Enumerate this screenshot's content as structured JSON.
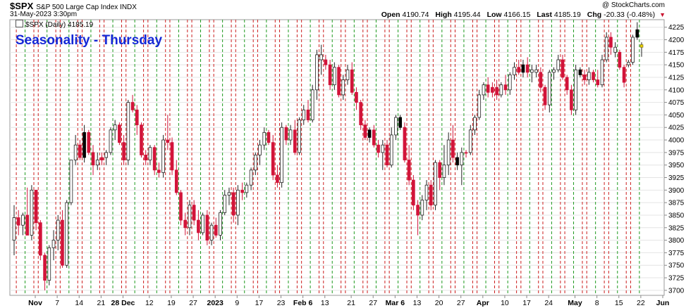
{
  "header": {
    "symbol": "$SPX",
    "name": "S&P 500 Large Cap Index",
    "exchange": "INDX",
    "datetime": "31-May-2023 3:30pm",
    "watermark": "@ StockCharts.com",
    "open_label": "Open",
    "open": "4190.74",
    "high_label": "High",
    "high": "4195.44",
    "low_label": "Low",
    "low": "4166.15",
    "last_label": "Last",
    "last": "4185.19",
    "chg_label": "Chg",
    "chg": "-20.33 (-0.48%)",
    "chg_icon": "down-triangle-icon"
  },
  "legend_text": "$SPX (Daily) 4185.19",
  "annotation": "Seasonality - Thursday",
  "colors": {
    "up_candle_body": "#ffffff",
    "down_candle_body": "#d2143a",
    "black_candle": "#000000",
    "current_bar": "#f2d600",
    "red_line": "#cc1f1f",
    "green_line": "#1f9a1f",
    "title_blue": "#1428d6"
  },
  "chart_data": {
    "type": "candlestick",
    "title": "$SPX (Daily)",
    "ylim": [
      3690,
      4240
    ],
    "yticks": [
      3700,
      3725,
      3750,
      3775,
      3800,
      3825,
      3850,
      3875,
      3900,
      3925,
      3950,
      3975,
      4000,
      4025,
      4050,
      4075,
      4100,
      4125,
      4150,
      4175,
      4200,
      4225
    ],
    "grid": true,
    "y_axis_position": "right",
    "x_labels": [
      "Nov",
      "7",
      "14",
      "21",
      "28 Dec",
      "12",
      "19",
      "27",
      "2023",
      "9",
      "17",
      "23",
      "Feb 6",
      "13",
      "21",
      "27",
      "Mar 6",
      "13",
      "20",
      "27",
      "Apr",
      "10",
      "17",
      "24",
      "May",
      "8",
      "15",
      "22",
      "Jun"
    ],
    "x_label_bold": [
      "Nov",
      "Dec",
      "2023",
      "Feb",
      "Mar",
      "Apr",
      "May",
      "Jun"
    ],
    "vertical_lines": "red dashed = Wednesday/Friday, green dashed = Thursday",
    "start_date": "2022-10-25",
    "end_date": "2023-05-31",
    "ohlc": [
      [
        3800,
        3870,
        3770,
        3845,
        "u"
      ],
      [
        3845,
        3860,
        3810,
        3830,
        "d"
      ],
      [
        3830,
        3855,
        3810,
        3850,
        "u"
      ],
      [
        3850,
        3905,
        3810,
        3810,
        "d"
      ],
      [
        3810,
        3910,
        3800,
        3900,
        "u"
      ],
      [
        3900,
        3900,
        3820,
        3835,
        "d"
      ],
      [
        3835,
        3840,
        3760,
        3770,
        "d"
      ],
      [
        3770,
        3775,
        3700,
        3720,
        "d"
      ],
      [
        3720,
        3790,
        3710,
        3785,
        "u"
      ],
      [
        3785,
        3820,
        3760,
        3800,
        "u"
      ],
      [
        3800,
        3850,
        3780,
        3840,
        "u"
      ],
      [
        3840,
        3860,
        3745,
        3750,
        "d"
      ],
      [
        3750,
        3880,
        3745,
        3875,
        "u"
      ],
      [
        3875,
        3960,
        3870,
        3960,
        "u"
      ],
      [
        3960,
        4010,
        3950,
        3990,
        "u"
      ],
      [
        3990,
        4000,
        3960,
        3965,
        "d"
      ],
      [
        3965,
        4030,
        3955,
        4015,
        "k"
      ],
      [
        4015,
        4020,
        3970,
        3975,
        "d"
      ],
      [
        3975,
        3990,
        3930,
        3950,
        "d"
      ],
      [
        3950,
        3975,
        3940,
        3960,
        "u"
      ],
      [
        3960,
        3975,
        3950,
        3965,
        "d"
      ],
      [
        3965,
        3980,
        3950,
        3975,
        "u"
      ],
      [
        3975,
        4025,
        3970,
        4020,
        "u"
      ],
      [
        4020,
        4040,
        4000,
        4030,
        "u"
      ],
      [
        4030,
        4035,
        3990,
        3995,
        "d"
      ],
      [
        3995,
        4010,
        3950,
        3960,
        "d"
      ],
      [
        3960,
        4080,
        3950,
        4075,
        "u"
      ],
      [
        4075,
        4090,
        4055,
        4060,
        "d"
      ],
      [
        4060,
        4070,
        4010,
        4030,
        "d"
      ],
      [
        4030,
        4035,
        3965,
        3970,
        "d"
      ],
      [
        3970,
        3980,
        3950,
        3960,
        "d"
      ],
      [
        3960,
        3990,
        3950,
        3985,
        "u"
      ],
      [
        3985,
        3990,
        3930,
        3940,
        "d"
      ],
      [
        3940,
        3955,
        3925,
        3935,
        "d"
      ],
      [
        3935,
        4010,
        3925,
        4000,
        "u"
      ],
      [
        4000,
        4050,
        3980,
        3995,
        "d"
      ],
      [
        3995,
        4005,
        3930,
        3940,
        "d"
      ],
      [
        3940,
        3960,
        3890,
        3895,
        "d"
      ],
      [
        3895,
        3900,
        3830,
        3840,
        "d"
      ],
      [
        3840,
        3855,
        3810,
        3825,
        "d"
      ],
      [
        3825,
        3880,
        3810,
        3870,
        "u"
      ],
      [
        3870,
        3880,
        3830,
        3840,
        "d"
      ],
      [
        3840,
        3860,
        3800,
        3815,
        "d"
      ],
      [
        3815,
        3855,
        3810,
        3850,
        "u"
      ],
      [
        3850,
        3860,
        3790,
        3800,
        "d"
      ],
      [
        3800,
        3835,
        3790,
        3830,
        "u"
      ],
      [
        3830,
        3845,
        3805,
        3810,
        "d"
      ],
      [
        3810,
        3860,
        3800,
        3855,
        "u"
      ],
      [
        3855,
        3900,
        3850,
        3890,
        "u"
      ],
      [
        3890,
        3905,
        3870,
        3895,
        "u"
      ],
      [
        3895,
        3905,
        3835,
        3850,
        "d"
      ],
      [
        3850,
        3910,
        3830,
        3900,
        "u"
      ],
      [
        3900,
        3915,
        3880,
        3895,
        "d"
      ],
      [
        3895,
        3915,
        3885,
        3910,
        "u"
      ],
      [
        3910,
        3945,
        3900,
        3940,
        "u"
      ],
      [
        3940,
        3975,
        3930,
        3970,
        "u"
      ],
      [
        3970,
        4000,
        3950,
        3990,
        "u"
      ],
      [
        3990,
        4025,
        3980,
        4015,
        "u"
      ],
      [
        4015,
        4020,
        3990,
        3995,
        "d"
      ],
      [
        3995,
        4010,
        3920,
        3930,
        "d"
      ],
      [
        3930,
        3950,
        3905,
        3915,
        "d"
      ],
      [
        3915,
        4035,
        3905,
        4025,
        "u"
      ],
      [
        4025,
        4030,
        3990,
        4000,
        "d"
      ],
      [
        4000,
        4030,
        3990,
        4020,
        "u"
      ],
      [
        4020,
        4040,
        3970,
        3975,
        "d"
      ],
      [
        3975,
        4045,
        3970,
        4040,
        "u"
      ],
      [
        4040,
        4070,
        4030,
        4060,
        "u"
      ],
      [
        4060,
        4080,
        4035,
        4040,
        "d"
      ],
      [
        4040,
        4110,
        4035,
        4100,
        "u"
      ],
      [
        4100,
        4180,
        4080,
        4170,
        "u"
      ],
      [
        4170,
        4190,
        4130,
        4160,
        "u"
      ],
      [
        4160,
        4170,
        4140,
        4150,
        "d"
      ],
      [
        4150,
        4160,
        4100,
        4110,
        "d"
      ],
      [
        4110,
        4155,
        4100,
        4145,
        "u"
      ],
      [
        4145,
        4150,
        4085,
        4090,
        "d"
      ],
      [
        4090,
        4130,
        4080,
        4120,
        "u"
      ],
      [
        4120,
        4150,
        4110,
        4140,
        "u"
      ],
      [
        4140,
        4155,
        4090,
        4095,
        "d"
      ],
      [
        4095,
        4105,
        4060,
        4075,
        "d"
      ],
      [
        4075,
        4080,
        4020,
        4030,
        "d"
      ],
      [
        4030,
        4040,
        4000,
        4005,
        "d"
      ],
      [
        4005,
        4025,
        3995,
        4020,
        "k"
      ],
      [
        4020,
        4030,
        3985,
        3990,
        "d"
      ],
      [
        3990,
        4000,
        3965,
        3975,
        "d"
      ],
      [
        3975,
        4000,
        3940,
        3990,
        "u"
      ],
      [
        3990,
        4000,
        3945,
        3950,
        "d"
      ],
      [
        3950,
        4025,
        3945,
        4010,
        "u"
      ],
      [
        4010,
        4050,
        4000,
        4045,
        "u"
      ],
      [
        4045,
        4050,
        4020,
        4025,
        "k"
      ],
      [
        4025,
        4035,
        3955,
        3960,
        "d"
      ],
      [
        3960,
        3990,
        3910,
        3920,
        "d"
      ],
      [
        3920,
        3930,
        3860,
        3870,
        "d"
      ],
      [
        3870,
        3880,
        3810,
        3850,
        "d"
      ],
      [
        3850,
        3890,
        3840,
        3880,
        "u"
      ],
      [
        3880,
        3920,
        3860,
        3910,
        "u"
      ],
      [
        3910,
        3920,
        3860,
        3870,
        "d"
      ],
      [
        3870,
        3960,
        3860,
        3955,
        "u"
      ],
      [
        3955,
        3960,
        3900,
        3925,
        "d"
      ],
      [
        3925,
        3990,
        3910,
        3950,
        "u"
      ],
      [
        3950,
        4015,
        3930,
        4000,
        "u"
      ],
      [
        4000,
        4030,
        3955,
        3965,
        "d"
      ],
      [
        3965,
        3975,
        3940,
        3950,
        "k"
      ],
      [
        3950,
        3985,
        3910,
        3975,
        "u"
      ],
      [
        3975,
        3980,
        3965,
        3975,
        "d"
      ],
      [
        3975,
        4030,
        3970,
        4020,
        "u"
      ],
      [
        4020,
        4050,
        4010,
        4045,
        "u"
      ],
      [
        4045,
        4100,
        4040,
        4090,
        "u"
      ],
      [
        4090,
        4115,
        4080,
        4110,
        "u"
      ],
      [
        4110,
        4125,
        4085,
        4095,
        "d"
      ],
      [
        4095,
        4115,
        4085,
        4105,
        "d"
      ],
      [
        4105,
        4120,
        4080,
        4090,
        "d"
      ],
      [
        4090,
        4115,
        4085,
        4110,
        "u"
      ],
      [
        4110,
        4130,
        4090,
        4100,
        "d"
      ],
      [
        4100,
        4135,
        4090,
        4130,
        "u"
      ],
      [
        4130,
        4155,
        4120,
        4145,
        "u"
      ],
      [
        4145,
        4160,
        4130,
        4135,
        "d"
      ],
      [
        4135,
        4160,
        4125,
        4150,
        "k"
      ],
      [
        4150,
        4165,
        4125,
        4135,
        "d"
      ],
      [
        4135,
        4150,
        4115,
        4140,
        "u"
      ],
      [
        4140,
        4150,
        4125,
        4135,
        "u"
      ],
      [
        4135,
        4145,
        4095,
        4105,
        "d"
      ],
      [
        4105,
        4110,
        4060,
        4070,
        "d"
      ],
      [
        4070,
        4140,
        4055,
        4135,
        "u"
      ],
      [
        4135,
        4145,
        4120,
        4140,
        "u"
      ],
      [
        4140,
        4170,
        4135,
        4160,
        "u"
      ],
      [
        4160,
        4170,
        4120,
        4125,
        "d"
      ],
      [
        4125,
        4130,
        4090,
        4100,
        "d"
      ],
      [
        4100,
        4110,
        4050,
        4060,
        "d"
      ],
      [
        4060,
        4150,
        4050,
        4140,
        "u"
      ],
      [
        4140,
        4145,
        4125,
        4130,
        "k"
      ],
      [
        4130,
        4140,
        4110,
        4120,
        "d"
      ],
      [
        4120,
        4145,
        4110,
        4135,
        "u"
      ],
      [
        4135,
        4140,
        4115,
        4120,
        "d"
      ],
      [
        4120,
        4140,
        4105,
        4110,
        "d"
      ],
      [
        4110,
        4170,
        4105,
        4160,
        "u"
      ],
      [
        4160,
        4215,
        4155,
        4205,
        "u"
      ],
      [
        4205,
        4215,
        4170,
        4185,
        "d"
      ],
      [
        4185,
        4195,
        4165,
        4175,
        "u"
      ],
      [
        4175,
        4180,
        4140,
        4145,
        "d"
      ],
      [
        4145,
        4150,
        4105,
        4115,
        "d"
      ],
      [
        4150,
        4160,
        4145,
        4155,
        "u"
      ],
      [
        4155,
        4210,
        4150,
        4205,
        "u"
      ],
      [
        4205,
        4235,
        4200,
        4220,
        "k"
      ],
      [
        4190,
        4195,
        4166,
        4185,
        "y"
      ]
    ]
  }
}
